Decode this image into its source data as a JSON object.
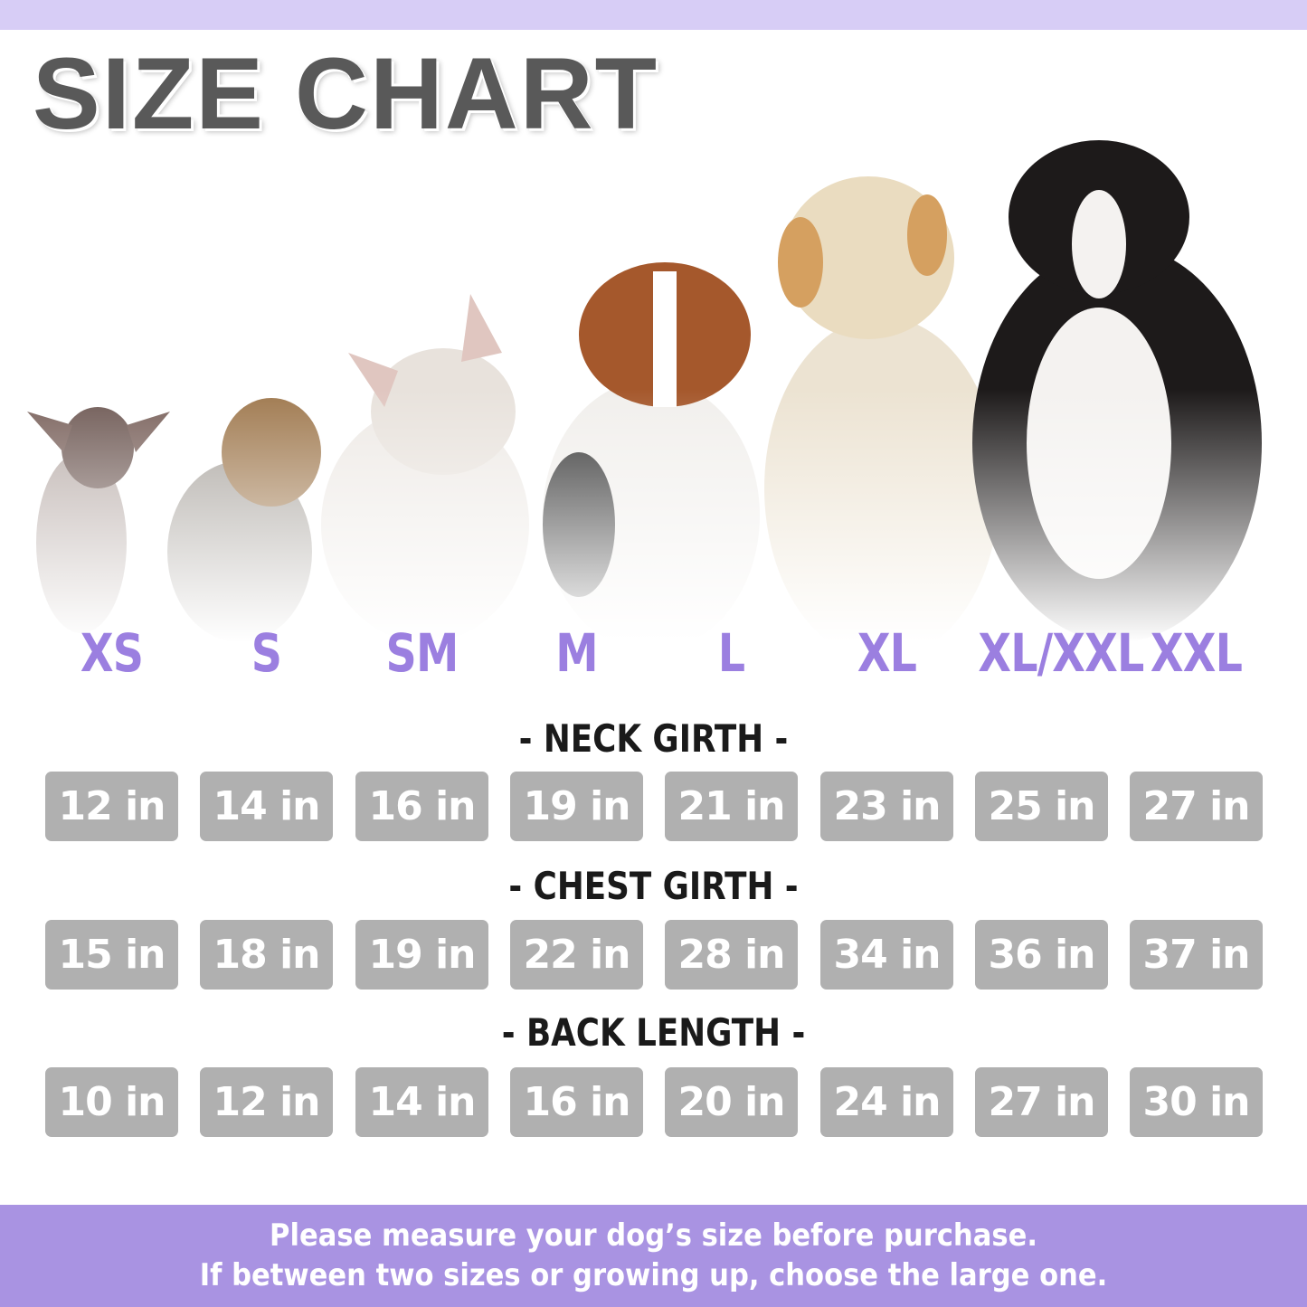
{
  "title": "SIZE CHART",
  "sizes": [
    "XS",
    "S",
    "SM",
    "M",
    "L",
    "XL",
    "XL/XXL",
    "XXL"
  ],
  "sections": [
    {
      "label": "- NECK GIRTH -",
      "values": [
        "12 in",
        "14 in",
        "16 in",
        "19 in",
        "21 in",
        "23 in",
        "25 in",
        "27 in"
      ]
    },
    {
      "label": "- CHEST GIRTH -",
      "values": [
        "15 in",
        "18 in",
        "19 in",
        "22 in",
        "28 in",
        "34 in",
        "36 in",
        "37 in"
      ]
    },
    {
      "label": "- BACK LENGTH -",
      "values": [
        "10 in",
        "12 in",
        "14 in",
        "16 in",
        "20 in",
        "24 in",
        "27 in",
        "30 in"
      ]
    }
  ],
  "footer": {
    "line1": "Please measure your dog’s size before purchase.",
    "line2": "If between two sizes or growing up, choose the large one."
  },
  "colors": {
    "accent": "#9b7fe0",
    "footer_bg": "#a993e2",
    "top_band": "#d7cdf6",
    "cell_bg": "#b0b0b0"
  }
}
